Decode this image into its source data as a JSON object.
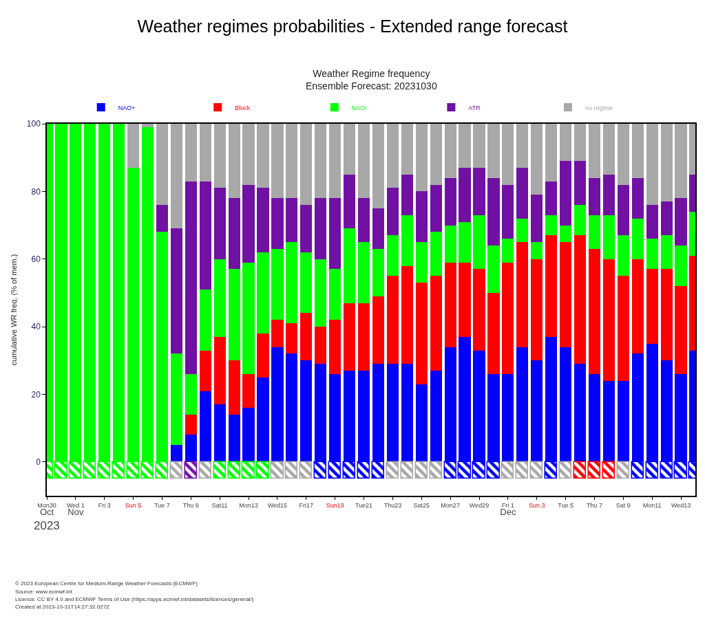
{
  "chart_data": {
    "type": "bar",
    "title": "Weather regimes probabilities - Extended range forecast",
    "subtitle": "Weather Regime frequency\nEnsemble Forecast: 20231030",
    "ylabel": "cumulative WR freq. (% of mem.)",
    "xlabel": "2023",
    "x": [
      "2023-10-30",
      "2023-10-31",
      "2023-11-01",
      "2023-11-02",
      "2023-11-03",
      "2023-11-04",
      "2023-11-05",
      "2023-11-06",
      "2023-11-07",
      "2023-11-08",
      "2023-11-09",
      "2023-11-10",
      "2023-11-11",
      "2023-11-12",
      "2023-11-13",
      "2023-11-14",
      "2023-11-15",
      "2023-11-16",
      "2023-11-17",
      "2023-11-18",
      "2023-11-19",
      "2023-11-20",
      "2023-11-21",
      "2023-11-22",
      "2023-11-23",
      "2023-11-24",
      "2023-11-25",
      "2023-11-26",
      "2023-11-27",
      "2023-11-28",
      "2023-11-29",
      "2023-11-30",
      "2023-12-01",
      "2023-12-02",
      "2023-12-03",
      "2023-12-04",
      "2023-12-05",
      "2023-12-06",
      "2023-12-07",
      "2023-12-08",
      "2023-12-09",
      "2023-12-10",
      "2023-12-11",
      "2023-12-12",
      "2023-12-13",
      "2023-12-14"
    ],
    "xlim": [
      "2023-10-30",
      "2023-12-14"
    ],
    "xticks": [
      {
        "value": "2023-10-30",
        "label": "Mon30"
      },
      {
        "value": "2023-11-01",
        "label": "Wed 1"
      },
      {
        "value": "2023-11-03",
        "label": "Fri 3"
      },
      {
        "value": "2023-11-05",
        "label": "Sun 5"
      },
      {
        "value": "2023-11-07",
        "label": "Tue 7"
      },
      {
        "value": "2023-11-09",
        "label": "Thu 9"
      },
      {
        "value": "2023-11-11",
        "label": "Sat11"
      },
      {
        "value": "2023-11-13",
        "label": "Mon13"
      },
      {
        "value": "2023-11-15",
        "label": "Wed15"
      },
      {
        "value": "2023-11-17",
        "label": "Fri17"
      },
      {
        "value": "2023-11-19",
        "label": "Sun19"
      },
      {
        "value": "2023-11-21",
        "label": "Tue21"
      },
      {
        "value": "2023-11-23",
        "label": "Thu23"
      },
      {
        "value": "2023-11-25",
        "label": "Sat25"
      },
      {
        "value": "2023-11-27",
        "label": "Mon27"
      },
      {
        "value": "2023-11-29",
        "label": "Wed29"
      },
      {
        "value": "2023-12-01",
        "label": "Fri 1"
      },
      {
        "value": "2023-12-03",
        "label": "Sun 3"
      },
      {
        "value": "2023-12-05",
        "label": "Tue 5"
      },
      {
        "value": "2023-12-07",
        "label": "Thu 7"
      },
      {
        "value": "2023-12-09",
        "label": "Sat 9"
      },
      {
        "value": "2023-12-11",
        "label": "Mon11"
      },
      {
        "value": "2023-12-13",
        "label": "Wed13"
      }
    ],
    "x2lim": [
      "2023-10-30",
      "2023-12-14"
    ],
    "x2ticks": [
      {
        "value": "2023-10-30",
        "label": "Oct"
      },
      {
        "value": "2023-11-01",
        "label": "Nov"
      },
      {
        "value": "2023-12-01",
        "label": "Dec"
      }
    ],
    "ylim": [
      -10,
      100
    ],
    "yticks": [
      0,
      20,
      40,
      60,
      80,
      100
    ],
    "stacked": true,
    "legend": "top",
    "series": [
      {
        "name": "NAO+",
        "color": "#0000ff",
        "values": [
          0,
          0,
          0,
          0,
          0,
          0,
          0,
          0,
          0,
          5,
          8,
          21,
          17,
          14,
          16,
          25,
          34,
          32,
          30,
          29,
          26,
          27,
          27,
          29,
          29,
          29,
          23,
          27,
          34,
          37,
          33,
          26,
          26,
          34,
          30,
          37,
          34,
          29,
          26,
          24,
          24,
          32,
          35,
          30,
          26,
          33
        ]
      },
      {
        "name": "Block",
        "color": "#ff0000",
        "values": [
          0,
          0,
          0,
          0,
          0,
          0,
          0,
          0,
          0,
          0,
          6,
          12,
          20,
          16,
          10,
          13,
          8,
          9,
          14,
          11,
          16,
          20,
          20,
          20,
          26,
          29,
          30,
          28,
          25,
          22,
          24,
          24,
          33,
          31,
          30,
          30,
          31,
          38,
          37,
          36,
          31,
          28,
          22,
          27,
          26,
          28
        ]
      },
      {
        "name": "NAO-",
        "color": "#00ff00",
        "values": [
          100,
          100,
          100,
          100,
          100,
          100,
          87,
          99,
          68,
          27,
          12,
          18,
          23,
          27,
          33,
          24,
          21,
          24,
          18,
          20,
          15,
          22,
          18,
          14,
          12,
          15,
          12,
          13,
          11,
          12,
          16,
          14,
          7,
          7,
          5,
          6,
          5,
          9,
          10,
          13,
          12,
          12,
          9,
          10,
          12,
          13
        ]
      },
      {
        "name": "ATR",
        "color": "#7011a3",
        "values": [
          0,
          0,
          0,
          0,
          0,
          0,
          0,
          0,
          8,
          37,
          57,
          32,
          21,
          21,
          23,
          19,
          15,
          13,
          14,
          18,
          21,
          16,
          13,
          12,
          14,
          12,
          15,
          14,
          14,
          16,
          14,
          20,
          16,
          15,
          14,
          10,
          19,
          13,
          11,
          12,
          15,
          12,
          10,
          10,
          14,
          11
        ]
      },
      {
        "name": "no regime",
        "color": "#a8a8a8",
        "values": [
          0,
          0,
          0,
          0,
          0,
          0,
          13,
          1,
          24,
          31,
          17,
          17,
          19,
          22,
          18,
          19,
          22,
          22,
          24,
          22,
          22,
          15,
          22,
          25,
          19,
          15,
          20,
          18,
          16,
          13,
          13,
          16,
          18,
          13,
          21,
          17,
          11,
          11,
          16,
          15,
          18,
          16,
          24,
          23,
          22,
          15
        ]
      },
      {
        "colors": [
          "#00ff00",
          "#00ff00",
          "#00ff00",
          "#00ff00",
          "#00ff00",
          "#00ff00",
          "#00ff00",
          "#00ff00",
          "#00ff00",
          "#a8a8a8",
          "#7011a3",
          "#a8a8a8",
          "#00ff00",
          "#00ff00",
          "#00ff00",
          "#00ff00",
          "#a8a8a8",
          "#a8a8a8",
          "#a8a8a8",
          "#0000ff",
          "#0000ff",
          "#0000ff",
          "#0000ff",
          "#0000ff",
          "#a8a8a8",
          "#a8a8a8",
          "#a8a8a8",
          "#a8a8a8",
          "#0000ff",
          "#0000ff",
          "#0000ff",
          "#0000ff",
          "#a8a8a8",
          "#a8a8a8",
          "#a8a8a8",
          "#0000ff",
          "#a8a8a8",
          "#ff0000",
          "#ff0000",
          "#ff0000",
          "#a8a8a8",
          "#0000ff",
          "#0000ff",
          "#0000ff",
          "#0000ff",
          "#0000ff"
        ],
        "values": [
          -5,
          -5,
          -5,
          -5,
          -5,
          -5,
          -5,
          -5,
          -5,
          -5,
          -5,
          -5,
          -5,
          -5,
          -5,
          -5,
          -5,
          -5,
          -5,
          -5,
          -5,
          -5,
          -5,
          -5,
          -5,
          -5,
          -5,
          -5,
          -5,
          -5,
          -5,
          -5,
          -5,
          -5,
          -5,
          -5,
          -5,
          -5,
          -5,
          -5,
          -5,
          -5,
          -5,
          -5,
          -5,
          -5
        ]
      }
    ],
    "annotations": [
      "© 2023 European Centre for Medium-Range Weather Forecasts (ECMWF)",
      "Source: www.ecmwf.int",
      "Licence: CC BY 4.0 and ECMWF Terms of Use (https://apps.ecmwf.int/datasets/licences/general/)",
      "Created at 2023-10-31T14:27:32.027Z"
    ]
  }
}
